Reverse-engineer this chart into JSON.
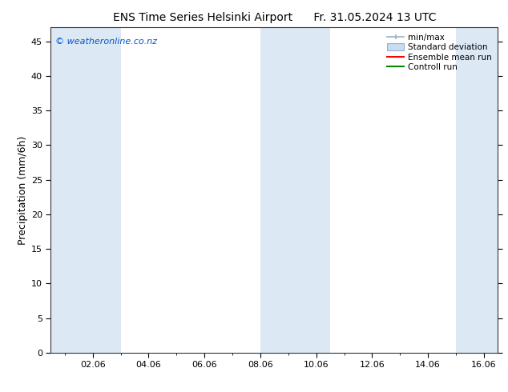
{
  "title_left": "ENS Time Series Helsinki Airport",
  "title_right": "Fr. 31.05.2024 13 UTC",
  "ylabel": "Precipitation (mm/6h)",
  "watermark": "© weatheronline.co.nz",
  "watermark_color": "#0055cc",
  "xlim_start": 0.5,
  "xlim_end": 16.5,
  "ylim": [
    0,
    47
  ],
  "yticks": [
    0,
    5,
    10,
    15,
    20,
    25,
    30,
    35,
    40,
    45
  ],
  "xtick_labels": [
    "02.06",
    "04.06",
    "06.06",
    "08.06",
    "10.06",
    "12.06",
    "14.06",
    "16.06"
  ],
  "xtick_positions": [
    2,
    4,
    6,
    8,
    10,
    12,
    14,
    16
  ],
  "background_color": "#ffffff",
  "plot_bg_color": "#ffffff",
  "shaded_regions": [
    [
      0.5,
      2.0
    ],
    [
      2.0,
      3.0
    ],
    [
      8.0,
      9.0
    ],
    [
      9.0,
      10.5
    ],
    [
      15.0,
      16.5
    ]
  ],
  "shaded_color": "#dce9f5",
  "minmax_color": "#9ab0c0",
  "stddev_color": "#c8ddf0",
  "mean_color": "#ff0000",
  "control_color": "#008800",
  "legend_labels": [
    "min/max",
    "Standard deviation",
    "Ensemble mean run",
    "Controll run"
  ],
  "title_fontsize": 10,
  "tick_fontsize": 8,
  "ylabel_fontsize": 9
}
